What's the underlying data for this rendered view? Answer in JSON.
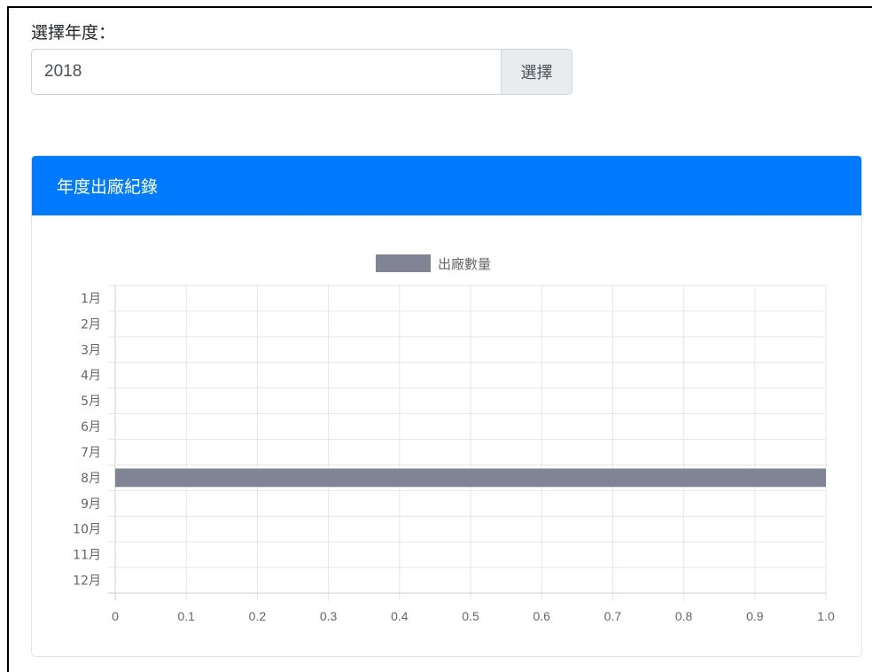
{
  "form": {
    "label": "選擇年度：",
    "year_value": "2018",
    "select_button": "選擇"
  },
  "card": {
    "title": "年度出廠紀錄",
    "header_color": "#007bff"
  },
  "chart_data": {
    "type": "bar",
    "orientation": "horizontal",
    "categories": [
      "1月",
      "2月",
      "3月",
      "4月",
      "5月",
      "6月",
      "7月",
      "8月",
      "9月",
      "10月",
      "11月",
      "12月"
    ],
    "series": [
      {
        "name": "出廠數量",
        "values": [
          0,
          0,
          0,
          0,
          0,
          0,
          0,
          1,
          0,
          0,
          0,
          0
        ],
        "color": "#808494"
      }
    ],
    "xlim": [
      0,
      1.0
    ],
    "x_ticks": [
      "0",
      "0.1",
      "0.2",
      "0.3",
      "0.4",
      "0.5",
      "0.6",
      "0.7",
      "0.8",
      "0.9",
      "1.0"
    ],
    "grid": true,
    "legend_position": "top-center"
  }
}
